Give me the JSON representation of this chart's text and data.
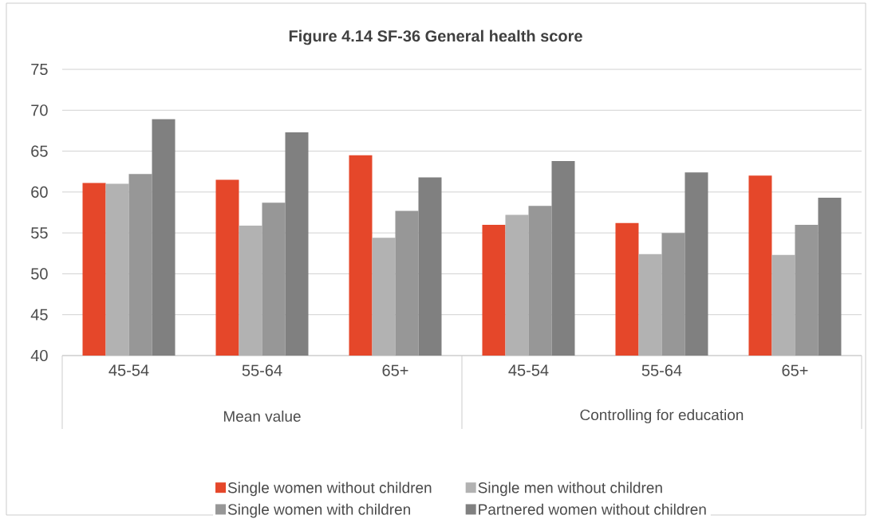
{
  "chart_data": {
    "type": "bar",
    "title": "Figure 4.14 SF-36 General health score",
    "categories": [
      "45-54",
      "55-64",
      "65+",
      "45-54",
      "55-64",
      "65+"
    ],
    "annotations": [
      "Mean value",
      "Controlling for education"
    ],
    "series": [
      {
        "name": "Single women without children",
        "color": "#e5472a",
        "values": [
          61.1,
          61.5,
          64.5,
          56.0,
          56.2,
          62.0
        ]
      },
      {
        "name": "Single men without children",
        "color": "#b2b2b2",
        "values": [
          61.0,
          55.9,
          54.4,
          57.2,
          52.4,
          52.3
        ]
      },
      {
        "name": "Single women with children",
        "color": "#979797",
        "values": [
          62.2,
          58.7,
          57.7,
          58.3,
          55.0,
          56.0
        ]
      },
      {
        "name": "Partnered women without children",
        "color": "#808080",
        "values": [
          68.9,
          67.3,
          61.8,
          63.8,
          62.4,
          59.3
        ]
      }
    ],
    "ylim": [
      40,
      75
    ],
    "yticks": [
      40,
      45,
      50,
      55,
      60,
      65,
      70,
      75
    ],
    "grid": "y",
    "legend": "bottom"
  }
}
